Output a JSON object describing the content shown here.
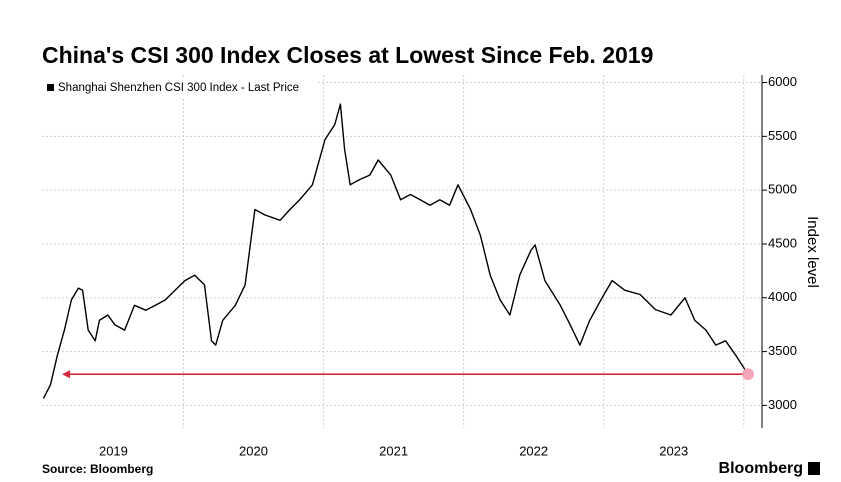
{
  "chart_data": {
    "type": "line",
    "title": "China's CSI 300 Index Closes at Lowest Since Feb. 2019",
    "y_label": "Index level",
    "source": "Source: Bloomberg",
    "brand": "Bloomberg",
    "x": [
      2019.01,
      2019.06,
      2019.11,
      2019.16,
      2019.21,
      2019.26,
      2019.29,
      2019.33,
      2019.38,
      2019.41,
      2019.47,
      2019.52,
      2019.59,
      2019.66,
      2019.74,
      2019.81,
      2019.88,
      2019.95,
      2020.02,
      2020.09,
      2020.16,
      2020.21,
      2020.24,
      2020.29,
      2020.38,
      2020.45,
      2020.52,
      2020.59,
      2020.7,
      2020.77,
      2020.84,
      2020.93,
      2021.02,
      2021.09,
      2021.13,
      2021.16,
      2021.2,
      2021.27,
      2021.34,
      2021.4,
      2021.49,
      2021.56,
      2021.63,
      2021.7,
      2021.77,
      2021.84,
      2021.91,
      2021.97,
      2022.06,
      2022.13,
      2022.2,
      2022.27,
      2022.34,
      2022.41,
      2022.49,
      2022.52,
      2022.59,
      2022.7,
      2022.77,
      2022.84,
      2022.91,
      2022.99,
      2023.07,
      2023.16,
      2023.27,
      2023.38,
      2023.49,
      2023.59,
      2023.66,
      2023.74,
      2023.81,
      2023.88,
      2023.95,
      2024.0,
      2024.04
    ],
    "series": [
      {
        "name": "Shanghai Shenzhen CSI 300 Index - Last Price",
        "color": "#000000",
        "values": [
          3065,
          3190,
          3466,
          3700,
          3980,
          4090,
          4070,
          3700,
          3600,
          3790,
          3840,
          3750,
          3700,
          3930,
          3885,
          3930,
          3980,
          4070,
          4160,
          4210,
          4120,
          3600,
          3560,
          3790,
          3930,
          4120,
          4820,
          4770,
          4720,
          4820,
          4910,
          5050,
          5470,
          5610,
          5800,
          5380,
          5050,
          5100,
          5140,
          5280,
          5140,
          4910,
          4960,
          4910,
          4860,
          4910,
          4860,
          5050,
          4820,
          4580,
          4210,
          3980,
          3840,
          4210,
          4440,
          4490,
          4160,
          3930,
          3750,
          3560,
          3790,
          3980,
          4160,
          4070,
          4030,
          3890,
          3840,
          4000,
          3790,
          3700,
          3560,
          3600,
          3470,
          3370,
          3290
        ]
      }
    ],
    "xlim": [
      2019.0,
      2024.14
    ],
    "xticks": [
      {
        "value": 2019.51,
        "label": "2019"
      },
      {
        "value": 2020.51,
        "label": "2020"
      },
      {
        "value": 2021.51,
        "label": "2021"
      },
      {
        "value": 2022.51,
        "label": "2022"
      },
      {
        "value": 2023.51,
        "label": "2023"
      }
    ],
    "ylim": [
      2790,
      6070
    ],
    "yticks": [
      3000,
      3500,
      4000,
      4500,
      5000,
      5500,
      6000
    ],
    "grid": true,
    "highlight_color": "#f4a6b8",
    "arrow_color": "#d62a3c"
  }
}
